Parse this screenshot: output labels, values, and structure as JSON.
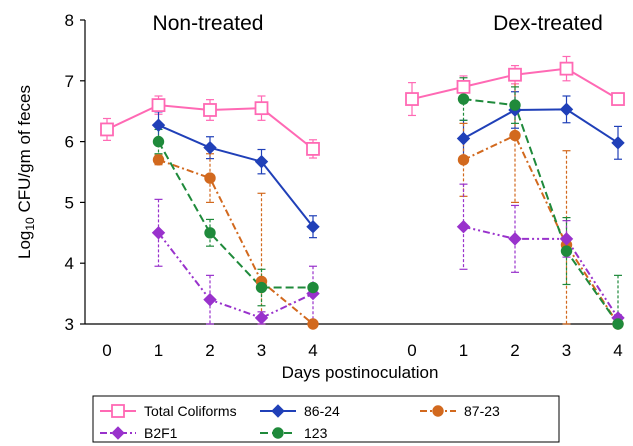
{
  "chart_data": {
    "type": "line",
    "x": [
      0,
      1,
      2,
      3,
      4
    ],
    "xlabel": "Days postinoculation",
    "ylabel_prefix": "Log",
    "ylabel_sub": "10",
    "ylabel_rest": " CFU/gm of feces",
    "ylim": [
      3,
      8
    ],
    "yticks": [
      "3",
      "4",
      "5",
      "6",
      "7",
      "8"
    ],
    "xtick_labels": [
      "0",
      "1",
      "2",
      "3",
      "4"
    ],
    "panels": [
      {
        "title": "Non-treated",
        "series": [
          {
            "name": "Total Coliforms",
            "color": "#ff69b4",
            "dash": "",
            "marker": "square-open",
            "x": [
              0,
              1,
              2,
              3,
              4
            ],
            "values": [
              6.2,
              6.6,
              6.52,
              6.55,
              5.88
            ],
            "err": [
              0.18,
              0.15,
              0.17,
              0.2,
              0.15
            ]
          },
          {
            "name": "86-24",
            "color": "#2040b8",
            "dash": "",
            "marker": "diamond",
            "x": [
              1,
              2,
              3,
              4
            ],
            "values": [
              6.27,
              5.9,
              5.67,
              4.6
            ],
            "err": [
              0.22,
              0.18,
              0.2,
              0.18
            ]
          },
          {
            "name": "87-23",
            "color": "#d2691e",
            "dash": "7,3,2,3",
            "marker": "circle",
            "x": [
              1,
              2,
              3,
              4
            ],
            "values": [
              5.7,
              5.4,
              3.7,
              3.0
            ],
            "err": [
              0.08,
              0.4,
              1.45,
              0
            ]
          },
          {
            "name": "B2F1",
            "color": "#9932cc",
            "dash": "7,3,2,3,2,3",
            "marker": "diamond",
            "x": [
              1,
              2,
              3,
              4
            ],
            "values": [
              4.5,
              3.4,
              3.1,
              3.5
            ],
            "err": [
              0.55,
              0.4,
              0.1,
              0.45
            ]
          },
          {
            "name": "123",
            "color": "#1f8a3b",
            "dash": "8,4",
            "marker": "circle",
            "x": [
              1,
              2,
              3,
              4
            ],
            "values": [
              6.0,
              4.5,
              3.6,
              3.6
            ],
            "err": [
              0.2,
              0.22,
              0.3,
              0
            ]
          }
        ]
      },
      {
        "title": "Dex-treated",
        "series": [
          {
            "name": "Total Coliforms",
            "color": "#ff69b4",
            "dash": "",
            "marker": "square-open",
            "x": [
              0,
              1,
              2,
              3,
              4
            ],
            "values": [
              6.7,
              6.9,
              7.1,
              7.2,
              6.7
            ],
            "err": [
              0.27,
              0.18,
              0.15,
              0.2,
              0
            ]
          },
          {
            "name": "86-24",
            "color": "#2040b8",
            "dash": "",
            "marker": "diamond",
            "x": [
              1,
              2,
              3,
              4
            ],
            "values": [
              6.05,
              6.52,
              6.53,
              5.98
            ],
            "err": [
              0.3,
              0.3,
              0.22,
              0.27
            ]
          },
          {
            "name": "87-23",
            "color": "#d2691e",
            "dash": "7,3,2,3",
            "marker": "circle",
            "x": [
              1,
              2,
              3,
              4
            ],
            "values": [
              5.7,
              6.1,
              4.3,
              3.0
            ],
            "err": [
              0.6,
              1.1,
              1.55,
              0
            ]
          },
          {
            "name": "B2F1",
            "color": "#9932cc",
            "dash": "7,3,2,3,2,3",
            "marker": "diamond",
            "x": [
              1,
              2,
              3,
              4
            ],
            "values": [
              4.6,
              4.4,
              4.4,
              3.1
            ],
            "err": [
              0.7,
              0.55,
              0.3,
              0.05
            ]
          },
          {
            "name": "123",
            "color": "#1f8a3b",
            "dash": "8,4",
            "marker": "circle",
            "x": [
              1,
              2,
              3,
              4
            ],
            "values": [
              6.7,
              6.6,
              4.2,
              3.0
            ],
            "err": [
              0.35,
              0.3,
              0.55,
              0.8
            ]
          }
        ]
      }
    ],
    "legend": {
      "placement": "bottom",
      "entries": [
        {
          "name": "Total Coliforms",
          "color": "#ff69b4",
          "dash": "",
          "marker": "square-open"
        },
        {
          "name": "86-24",
          "color": "#2040b8",
          "dash": "",
          "marker": "diamond"
        },
        {
          "name": "87-23",
          "color": "#d2691e",
          "dash": "7,3,2,3",
          "marker": "circle"
        },
        {
          "name": "B2F1",
          "color": "#9932cc",
          "dash": "7,3,2,3,2,3",
          "marker": "diamond"
        },
        {
          "name": "123",
          "color": "#1f8a3b",
          "dash": "8,4",
          "marker": "circle"
        }
      ]
    }
  }
}
